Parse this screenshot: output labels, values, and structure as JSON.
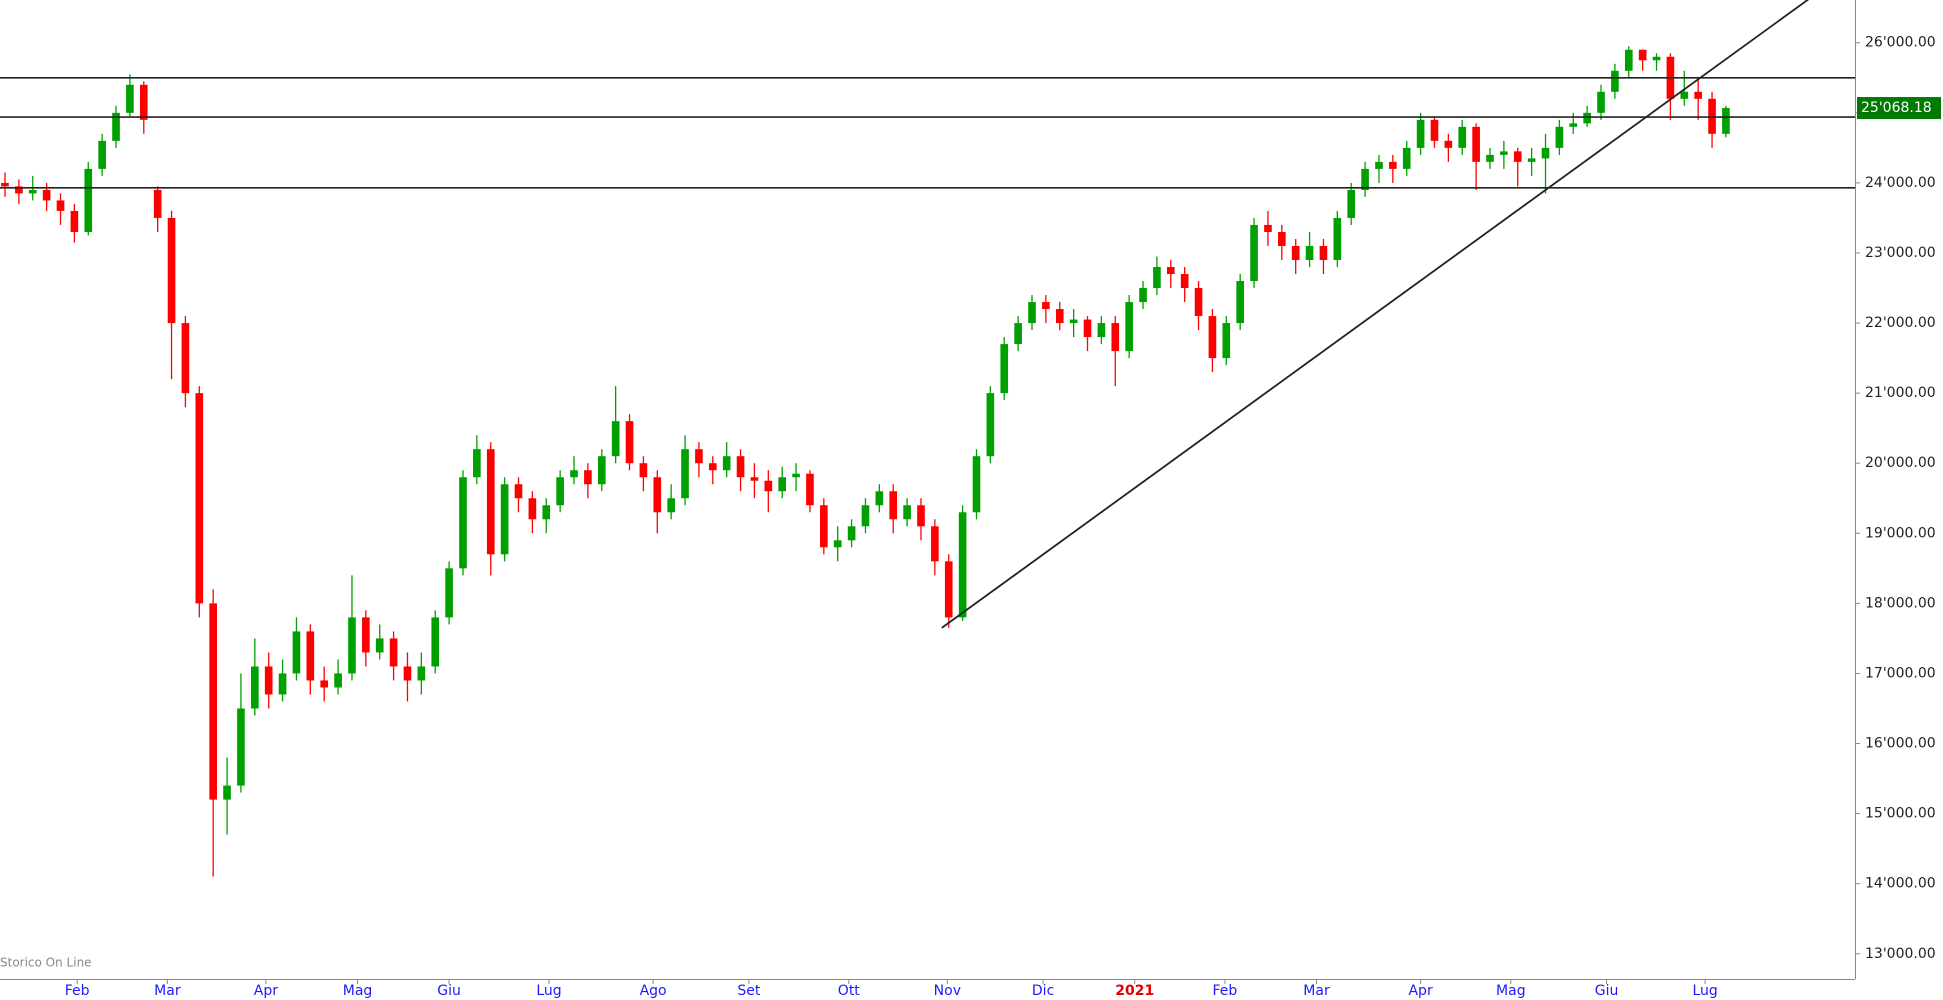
{
  "chart_data": {
    "type": "candlestick",
    "watermark": "Storico On Line",
    "xlim": [
      -0.36,
      133.3
    ],
    "xticks": [
      {
        "value": 5.2,
        "label": "Feb"
      },
      {
        "value": 11.7,
        "label": "Mar"
      },
      {
        "value": 18.8,
        "label": "Apr"
      },
      {
        "value": 25.4,
        "label": "Mag"
      },
      {
        "value": 32,
        "label": "Giu"
      },
      {
        "value": 39.2,
        "label": "Lug"
      },
      {
        "value": 46.7,
        "label": "Ago"
      },
      {
        "value": 53.6,
        "label": "Set"
      },
      {
        "value": 60.8,
        "label": "Ott"
      },
      {
        "value": 67.9,
        "label": "Nov"
      },
      {
        "value": 74.8,
        "label": "Dic"
      },
      {
        "value": 81.4,
        "label": "2021"
      },
      {
        "value": 87.9,
        "label": "Feb"
      },
      {
        "value": 94.5,
        "label": "Mar"
      },
      {
        "value": 102,
        "label": "Apr"
      },
      {
        "value": 108.5,
        "label": "Mag"
      },
      {
        "value": 115.4,
        "label": "Giu"
      },
      {
        "value": 122.5,
        "label": "Lug"
      }
    ],
    "ylim": [
      12640,
      26610
    ],
    "yticks": [
      {
        "value": 13000,
        "label": "13'000.00"
      },
      {
        "value": 14000,
        "label": "14'000.00"
      },
      {
        "value": 15000,
        "label": "15'000.00"
      },
      {
        "value": 16000,
        "label": "16'000.00"
      },
      {
        "value": 17000,
        "label": "17'000.00"
      },
      {
        "value": 18000,
        "label": "18'000.00"
      },
      {
        "value": 19000,
        "label": "19'000.00"
      },
      {
        "value": 20000,
        "label": "20'000.00"
      },
      {
        "value": 21000,
        "label": "21'000.00"
      },
      {
        "value": 22000,
        "label": "22'000.00"
      },
      {
        "value": 23000,
        "label": "23'000.00"
      },
      {
        "value": 24000,
        "label": "24'000.00"
      },
      {
        "value": 25000,
        "label": "25'000.00"
      },
      {
        "value": 26000,
        "label": "26'000.00"
      }
    ],
    "up_color": "#00a000",
    "down_color": "#ff0000",
    "open": [
      24000,
      23950,
      23850,
      23900,
      23750,
      23600,
      23300,
      24200,
      24600,
      25000,
      25400,
      23900,
      23500,
      22000,
      21000,
      18000,
      15200,
      15400,
      16500,
      17100,
      16700,
      17000,
      17600,
      16900,
      16800,
      17000,
      17800,
      17300,
      17500,
      17100,
      16900,
      17100,
      17800,
      18500,
      19800,
      20200,
      18700,
      19700,
      19500,
      19200,
      19400,
      19800,
      19900,
      19700,
      20100,
      20600,
      20000,
      19800,
      19300,
      19500,
      20200,
      20000,
      19900,
      20100,
      19800,
      19750,
      19600,
      19800,
      19850,
      19400,
      18800,
      18900,
      19100,
      19400,
      19600,
      19200,
      19400,
      19100,
      18600,
      17800,
      19300,
      20100,
      21000,
      21700,
      22000,
      22300,
      22200,
      22000,
      22050,
      21800,
      22000,
      21600,
      22300,
      22500,
      22800,
      22700,
      22500,
      22100,
      21500,
      22000,
      22600,
      23400,
      23300,
      23100,
      22900,
      23100,
      22900,
      23500,
      23900,
      24200,
      24300,
      24200,
      24500,
      24900,
      24600,
      24500,
      24800,
      24300,
      24400,
      24450,
      24300,
      24350,
      24500,
      24800,
      24850,
      25000,
      25300,
      25600,
      25900,
      25750,
      25800,
      25200,
      25300,
      25200,
      24700
    ],
    "high": [
      24150,
      24050,
      24100,
      24000,
      23850,
      23700,
      24300,
      24700,
      25100,
      25550,
      25450,
      23950,
      23600,
      22100,
      21100,
      18200,
      15800,
      17000,
      17500,
      17300,
      17200,
      17800,
      17700,
      17100,
      17200,
      18400,
      17900,
      17700,
      17600,
      17300,
      17300,
      17900,
      18600,
      19900,
      20400,
      20300,
      19800,
      19800,
      19600,
      19500,
      19900,
      20100,
      20000,
      20200,
      21100,
      20700,
      20100,
      19900,
      19700,
      20400,
      20300,
      20100,
      20300,
      20200,
      20000,
      19900,
      19950,
      20000,
      19900,
      19500,
      19100,
      19200,
      19500,
      19700,
      19700,
      19500,
      19500,
      19200,
      18700,
      19400,
      20200,
      21100,
      21800,
      22100,
      22400,
      22400,
      22300,
      22200,
      22100,
      22100,
      22100,
      22400,
      22600,
      22950,
      22900,
      22800,
      22600,
      22200,
      22100,
      22700,
      23500,
      23600,
      23400,
      23200,
      23300,
      23200,
      23600,
      24000,
      24300,
      24400,
      24400,
      24600,
      25000,
      24950,
      24700,
      24900,
      24850,
      24500,
      24600,
      24500,
      24500,
      24700,
      24900,
      25000,
      25100,
      25400,
      25700,
      25950,
      25900,
      25850,
      25850,
      25600,
      25500,
      25300,
      25100
    ],
    "low": [
      23800,
      23700,
      23750,
      23600,
      23400,
      23150,
      23250,
      24100,
      24500,
      24950,
      24700,
      23300,
      21200,
      20800,
      17800,
      14100,
      14700,
      15300,
      16400,
      16500,
      16600,
      16900,
      16700,
      16600,
      16700,
      16900,
      17100,
      17200,
      16900,
      16600,
      16700,
      17000,
      17700,
      18400,
      19700,
      18400,
      18600,
      19300,
      19000,
      19000,
      19300,
      19700,
      19500,
      19600,
      20000,
      19900,
      19600,
      19000,
      19200,
      19400,
      19800,
      19700,
      19800,
      19600,
      19500,
      19300,
      19500,
      19600,
      19300,
      18700,
      18600,
      18800,
      19000,
      19300,
      19000,
      19100,
      18900,
      18400,
      17650,
      17750,
      19200,
      20000,
      20900,
      21600,
      21900,
      22000,
      21900,
      21800,
      21600,
      21700,
      21100,
      21500,
      22200,
      22400,
      22500,
      22300,
      21900,
      21300,
      21400,
      21900,
      22500,
      23100,
      22900,
      22700,
      22800,
      22700,
      22800,
      23400,
      23800,
      24000,
      24000,
      24100,
      24400,
      24500,
      24300,
      24400,
      23900,
      24200,
      24200,
      23950,
      24100,
      23850,
      24400,
      24700,
      24800,
      24900,
      25200,
      25500,
      25600,
      25600,
      24900,
      25100,
      24900,
      24500,
      24650
    ],
    "close": [
      23950,
      23850,
      23900,
      23750,
      23600,
      23300,
      24200,
      24600,
      25000,
      25400,
      24900,
      23500,
      22000,
      21000,
      18000,
      15200,
      15400,
      16500,
      17100,
      16700,
      17000,
      17600,
      16900,
      16800,
      17000,
      17800,
      17300,
      17500,
      17100,
      16900,
      17100,
      17800,
      18500,
      19800,
      20200,
      18700,
      19700,
      19500,
      19200,
      19400,
      19800,
      19900,
      19700,
      20100,
      20600,
      20000,
      19800,
      19300,
      19500,
      20200,
      20000,
      19900,
      20100,
      19800,
      19750,
      19600,
      19800,
      19850,
      19400,
      18800,
      18900,
      19100,
      19400,
      19600,
      19200,
      19400,
      19100,
      18600,
      17800,
      19300,
      20100,
      21000,
      21700,
      22000,
      22300,
      22200,
      22000,
      22050,
      21800,
      22000,
      21600,
      22300,
      22500,
      22800,
      22700,
      22500,
      22100,
      21500,
      22000,
      22600,
      23400,
      23300,
      23100,
      22900,
      23100,
      22900,
      23500,
      23900,
      24200,
      24300,
      24200,
      24500,
      24900,
      24600,
      24500,
      24800,
      24300,
      24400,
      24450,
      24300,
      24350,
      24500,
      24800,
      24850,
      25000,
      25300,
      25600,
      25900,
      25750,
      25800,
      25200,
      25300,
      25200,
      24700,
      25068.18
    ],
    "hlines": [
      25500,
      24940,
      23930
    ],
    "trendline": {
      "x": [
        67.5,
        131.3
      ],
      "y": [
        17650,
        26814
      ]
    },
    "last_label": {
      "value": 25068.18,
      "label": "25'068.18"
    }
  }
}
